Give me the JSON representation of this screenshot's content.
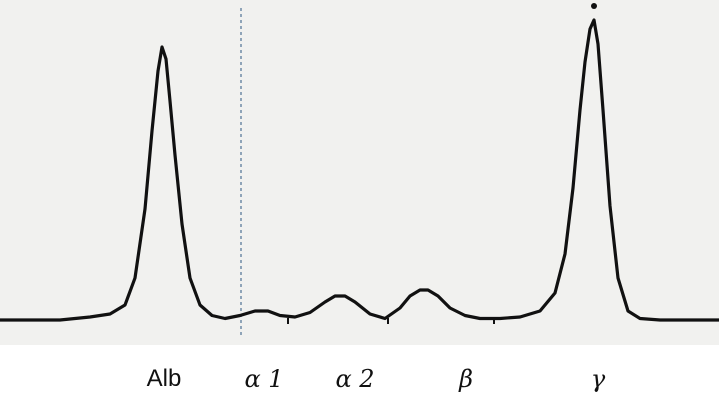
{
  "colors": {
    "background": "#f1f1ef",
    "trace": "#111111",
    "divider": "#6f8aa6"
  },
  "chart_data": {
    "type": "line",
    "title": "",
    "xlabel": "",
    "ylabel": "",
    "legend": "none",
    "grid": false,
    "ylim": [
      0,
      100
    ],
    "fractions": [
      {
        "label": "Alb",
        "peak_height": 91
      },
      {
        "label": "α 1",
        "peak_height": 3
      },
      {
        "label": "α 2",
        "peak_height": 8
      },
      {
        "label": "β",
        "peak_height": 10
      },
      {
        "label": "γ",
        "peak_height": 100
      }
    ],
    "series": [
      {
        "x": [
          0,
          30,
          60,
          90,
          110,
          125,
          135,
          145,
          152,
          158,
          162,
          166,
          170,
          175,
          182,
          190,
          200,
          212,
          225,
          240,
          255,
          268,
          280,
          295,
          310,
          325,
          335,
          345,
          355,
          370,
          385,
          400,
          410,
          420,
          428,
          438,
          450,
          465,
          480,
          500,
          520,
          540,
          555,
          565,
          573,
          580,
          585,
          590,
          594,
          598,
          603,
          610,
          618,
          628,
          640,
          660,
          690,
          719
        ],
        "y": [
          0,
          0,
          0,
          1,
          2,
          5,
          14,
          37,
          63,
          83,
          91,
          87,
          73,
          55,
          32,
          14,
          5,
          1.5,
          0.5,
          1.5,
          3,
          3,
          1.5,
          1,
          2.5,
          6,
          8,
          8,
          6,
          2,
          0.5,
          4,
          8,
          10,
          10,
          8,
          4,
          1.5,
          0.5,
          0.5,
          1,
          3,
          9,
          22,
          44,
          70,
          86,
          97,
          100,
          92,
          70,
          38,
          14,
          3,
          0.5,
          0,
          0,
          0
        ]
      }
    ]
  }
}
